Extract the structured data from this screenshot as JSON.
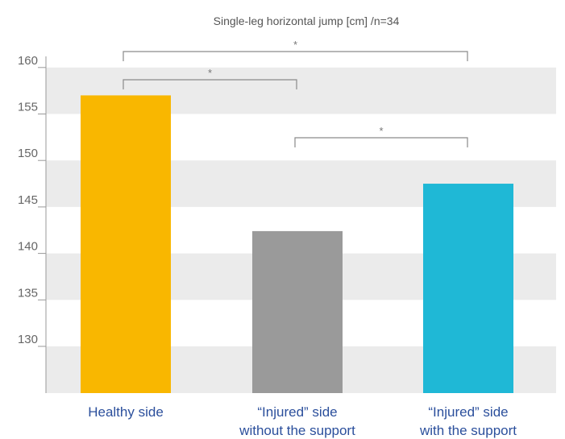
{
  "chart_data": {
    "type": "bar",
    "title": "Single-leg horizontal jump [cm] /n=34",
    "xlabel": "",
    "ylabel": "",
    "ylim": [
      125,
      162
    ],
    "yticks": [
      130,
      135,
      140,
      145,
      150,
      155,
      160
    ],
    "grid": true,
    "categories": [
      [
        "Healthy side"
      ],
      [
        "“Injured” side",
        "without the support"
      ],
      [
        "“Injured” side",
        "with the support"
      ]
    ],
    "values": [
      157.0,
      142.4,
      147.5
    ],
    "colors": [
      "#f9b700",
      "#9a9a9a",
      "#1fb8d6"
    ],
    "significance": [
      {
        "from": 0,
        "to": 2,
        "label": "*"
      },
      {
        "from": 0,
        "to": 1,
        "label": "*"
      },
      {
        "from": 1,
        "to": 2,
        "label": "*"
      }
    ]
  }
}
